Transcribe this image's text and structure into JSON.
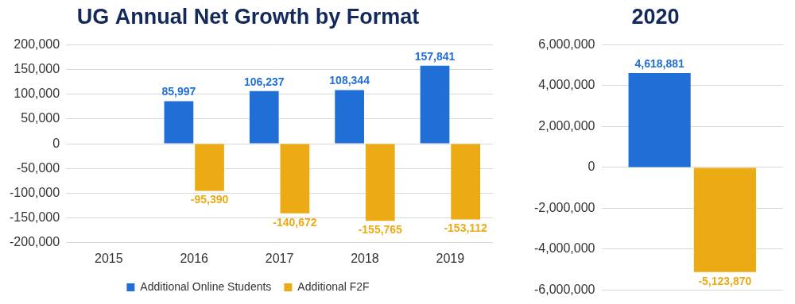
{
  "chart_data": [
    {
      "type": "bar",
      "title": "UG Annual Net Growth by Format",
      "categories": [
        "2015",
        "2016",
        "2017",
        "2018",
        "2019"
      ],
      "series": [
        {
          "name": "Additional Online Students",
          "color": "#1f6fd6",
          "values": [
            null,
            85997,
            106237,
            108344,
            157841
          ],
          "value_labels": [
            null,
            "85,997",
            "106,237",
            "108,344",
            "157,841"
          ]
        },
        {
          "name": "Additional F2F",
          "color": "#ecaa14",
          "values": [
            null,
            -95390,
            -140672,
            -155765,
            -153112
          ],
          "value_labels": [
            null,
            "-95,390",
            "-140,672",
            "-155,765",
            "-153,112"
          ]
        }
      ],
      "ylim": [
        -200000,
        200000
      ],
      "yticks": [
        {
          "value": -200000,
          "label": "-200,000"
        },
        {
          "value": -150000,
          "label": "-150,000"
        },
        {
          "value": -100000,
          "label": "-100,000"
        },
        {
          "value": -50000,
          "label": "-50,000"
        },
        0,
        {
          "value": 50000,
          "label": "50,000"
        },
        {
          "value": 100000,
          "label": "100,000"
        },
        {
          "value": 150000,
          "label": "150,000"
        },
        {
          "value": 200000,
          "label": "200,000"
        }
      ],
      "grid": true,
      "legend": "bottom",
      "data_labels": true
    },
    {
      "type": "bar",
      "title": "2020",
      "categories": [
        null
      ],
      "series": [
        {
          "color": "#1f6fd6",
          "values": [
            4618881
          ],
          "value_labels": [
            "4,618,881"
          ]
        },
        {
          "color": "#ecaa14",
          "values": [
            -5123870
          ],
          "value_labels": [
            "-5,123,870"
          ]
        }
      ],
      "ylim": [
        -6000000,
        6000000
      ],
      "yticks": [
        {
          "value": -6000000,
          "label": "-6,000,000"
        },
        {
          "value": -4000000,
          "label": "-4,000,000"
        },
        {
          "value": -2000000,
          "label": "-2,000,000"
        },
        0,
        {
          "value": 2000000,
          "label": "2,000,000"
        },
        {
          "value": 4000000,
          "label": "4,000,000"
        },
        {
          "value": 6000000,
          "label": "6,000,000"
        }
      ],
      "grid": true,
      "tick_labels": "y",
      "data_labels": true
    }
  ]
}
